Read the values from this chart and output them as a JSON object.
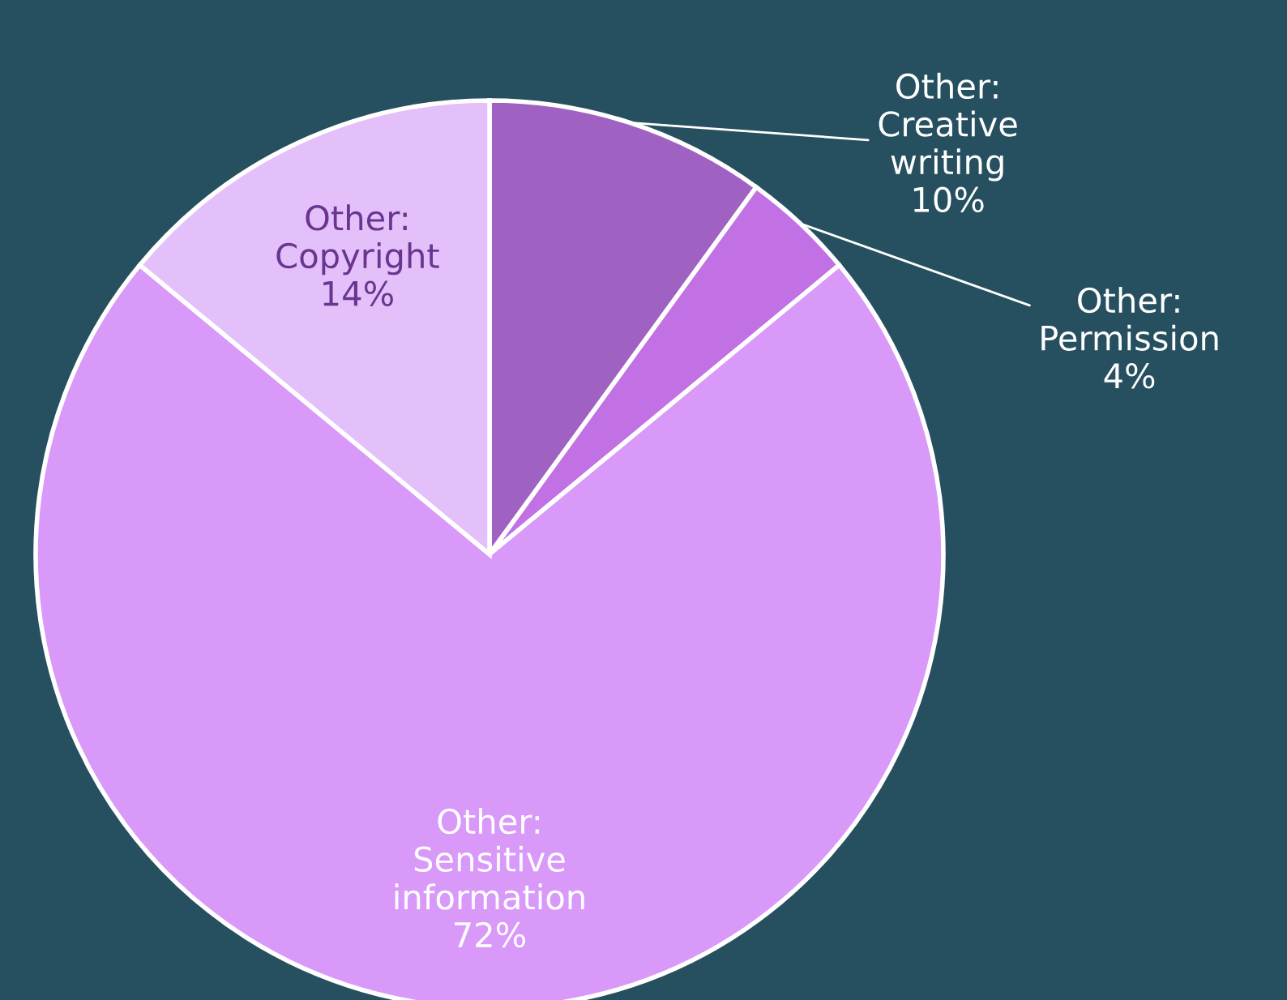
{
  "chart_data": {
    "type": "pie",
    "categories": [
      "Other: Creative writing",
      "Other: Permission",
      "Other: Sensitive information",
      "Other: Copyright"
    ],
    "values": [
      10,
      4,
      72,
      14
    ],
    "value_labels": [
      "10%",
      "4%",
      "72%",
      "14%"
    ],
    "colors": [
      "#a062c2",
      "#c171e4",
      "#d899f9",
      "#e3c0f9"
    ],
    "legend": false
  }
}
